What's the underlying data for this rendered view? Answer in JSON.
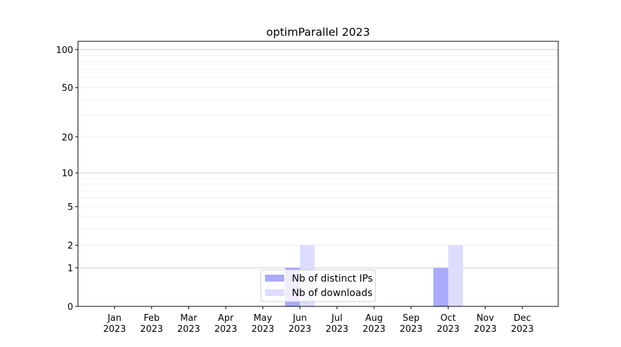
{
  "chart_data": {
    "type": "bar",
    "title": "optimParallel 2023",
    "xlabel": "",
    "ylabel": "",
    "categories": [
      "Jan\n2023",
      "Feb\n2023",
      "Mar\n2023",
      "Apr\n2023",
      "May\n2023",
      "Jun\n2023",
      "Jul\n2023",
      "Aug\n2023",
      "Sep\n2023",
      "Oct\n2023",
      "Nov\n2023",
      "Dec\n2023"
    ],
    "series": [
      {
        "name": "Nb of distinct IPs",
        "color": "#aaaaff",
        "values": [
          0,
          0,
          0,
          0,
          0,
          1,
          0,
          0,
          0,
          1,
          0,
          0
        ]
      },
      {
        "name": "Nb of downloads",
        "color": "#ddddff",
        "values": [
          0,
          0,
          0,
          0,
          0,
          2,
          0,
          0,
          0,
          2,
          0,
          0
        ]
      }
    ],
    "yscale": "log(1+y)",
    "ylim": [
      0,
      116
    ],
    "yticks": [
      0,
      1,
      2,
      5,
      10,
      20,
      50,
      100
    ],
    "grid": true,
    "legend_position": "lower-center"
  }
}
